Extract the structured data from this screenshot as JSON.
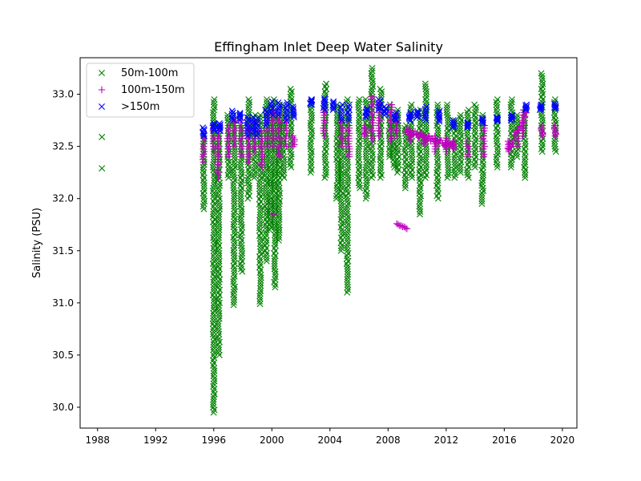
{
  "chart_data": {
    "type": "scatter",
    "title": "Effingham Inlet Deep Water Salinity",
    "xlabel": "",
    "ylabel": "Salinity (PSU)",
    "xlim": [
      1986.8,
      2021.0
    ],
    "ylim": [
      29.8,
      33.35
    ],
    "x_ticks": [
      1988,
      1992,
      1996,
      2000,
      2004,
      2008,
      2012,
      2016,
      2020
    ],
    "x_tick_labels": [
      "1988",
      "1992",
      "1996",
      "2000",
      "2004",
      "2008",
      "2012",
      "2016",
      "2020"
    ],
    "y_ticks": [
      30.0,
      30.5,
      31.0,
      31.5,
      32.0,
      32.5,
      33.0
    ],
    "y_tick_labels": [
      "30.0",
      "30.5",
      "31.0",
      "31.5",
      "32.0",
      "32.5",
      "33.0"
    ],
    "grid": false,
    "legend_position": "upper-left",
    "series": [
      {
        "name": "50m-100m",
        "color": "#008000",
        "marker": "x",
        "points": [
          [
            1988.3,
            32.59
          ],
          [
            1988.3,
            32.29
          ]
        ],
        "columns": [
          [
            1995.3,
            31.9,
            32.6
          ],
          [
            1996.0,
            29.95,
            32.95
          ],
          [
            1996.35,
            30.5,
            32.7
          ],
          [
            1997.0,
            32.2,
            32.8
          ],
          [
            1997.4,
            30.98,
            32.8
          ],
          [
            1997.9,
            31.3,
            32.7
          ],
          [
            1998.4,
            32.0,
            32.95
          ],
          [
            1998.8,
            32.2,
            32.8
          ],
          [
            1999.2,
            30.99,
            32.8
          ],
          [
            1999.6,
            31.4,
            32.95
          ],
          [
            1999.9,
            31.7,
            32.9
          ],
          [
            2000.2,
            31.15,
            32.95
          ],
          [
            2000.5,
            31.6,
            32.8
          ],
          [
            2000.8,
            32.2,
            32.9
          ],
          [
            2001.3,
            32.3,
            33.05
          ],
          [
            2002.7,
            32.25,
            32.95
          ],
          [
            2003.7,
            32.2,
            33.1
          ],
          [
            2004.5,
            32.0,
            32.9
          ],
          [
            2004.8,
            31.5,
            32.8
          ],
          [
            2005.2,
            31.1,
            32.95
          ],
          [
            2006.0,
            32.1,
            32.95
          ],
          [
            2006.5,
            32.0,
            32.95
          ],
          [
            2006.9,
            32.2,
            33.25
          ],
          [
            2007.5,
            32.2,
            33.05
          ],
          [
            2008.1,
            32.4,
            32.9
          ],
          [
            2008.4,
            32.3,
            32.8
          ],
          [
            2008.7,
            32.25,
            32.85
          ],
          [
            2009.2,
            32.1,
            32.7
          ],
          [
            2009.6,
            32.2,
            32.9
          ],
          [
            2010.2,
            31.85,
            32.85
          ],
          [
            2010.6,
            32.2,
            33.1
          ],
          [
            2011.4,
            32.0,
            32.9
          ],
          [
            2012.1,
            32.2,
            32.9
          ],
          [
            2012.6,
            32.2,
            32.75
          ],
          [
            2013.0,
            32.25,
            32.8
          ],
          [
            2013.5,
            32.2,
            32.85
          ],
          [
            2014.0,
            32.3,
            32.9
          ],
          [
            2014.5,
            31.95,
            32.8
          ],
          [
            2015.5,
            32.3,
            32.95
          ],
          [
            2016.5,
            32.3,
            32.95
          ],
          [
            2016.9,
            32.4,
            32.8
          ],
          [
            2017.4,
            32.2,
            32.85
          ],
          [
            2018.6,
            32.45,
            33.2
          ],
          [
            2019.5,
            32.45,
            32.95
          ]
        ]
      },
      {
        "name": "100m-150m",
        "color": "#bf00bf",
        "marker": "+",
        "points": [
          [
            2008.6,
            31.76
          ],
          [
            2008.7,
            31.75
          ],
          [
            2008.8,
            31.74
          ],
          [
            2008.9,
            31.74
          ],
          [
            2009.0,
            31.73
          ],
          [
            2009.1,
            31.73
          ],
          [
            2009.2,
            31.72
          ],
          [
            2009.3,
            31.71
          ],
          [
            2000.1,
            31.85
          ]
        ],
        "columns": [
          [
            1995.3,
            32.35,
            32.6
          ],
          [
            1996.0,
            32.45,
            32.7
          ],
          [
            1996.3,
            32.2,
            32.65
          ],
          [
            1997.0,
            32.4,
            32.7
          ],
          [
            1997.4,
            32.5,
            32.75
          ],
          [
            1997.9,
            32.4,
            32.75
          ],
          [
            1998.4,
            32.35,
            32.7
          ],
          [
            1998.8,
            32.45,
            32.75
          ],
          [
            1999.3,
            32.3,
            32.65
          ],
          [
            1999.7,
            32.5,
            32.8
          ],
          [
            2000.1,
            32.5,
            32.85
          ],
          [
            2000.5,
            32.4,
            32.8
          ],
          [
            2001.0,
            32.5,
            32.75
          ],
          [
            2001.5,
            32.5,
            32.6
          ],
          [
            2003.6,
            32.6,
            32.85
          ],
          [
            2004.8,
            32.5,
            32.75
          ],
          [
            2005.3,
            32.4,
            32.7
          ],
          [
            2006.4,
            32.6,
            32.7
          ],
          [
            2006.9,
            32.55,
            32.98
          ],
          [
            2007.4,
            32.6,
            32.92
          ],
          [
            2008.2,
            32.55,
            32.9
          ],
          [
            2008.6,
            32.6,
            32.8
          ],
          [
            2009.5,
            32.55,
            32.65
          ],
          [
            2010.5,
            32.52,
            32.6
          ],
          [
            2011.2,
            32.45,
            32.6
          ],
          [
            2012.0,
            32.45,
            32.58
          ],
          [
            2012.5,
            32.48,
            32.55
          ],
          [
            2013.5,
            32.4,
            32.55
          ],
          [
            2014.6,
            32.4,
            32.7
          ],
          [
            2016.3,
            32.45,
            32.55
          ],
          [
            2016.9,
            32.5,
            32.65
          ],
          [
            2017.3,
            32.6,
            32.85
          ],
          [
            2018.6,
            32.6,
            32.7
          ],
          [
            2019.5,
            32.6,
            32.7
          ]
        ],
        "ramps": [
          [
            2009.2,
            32.65,
            2012.5,
            32.5
          ],
          [
            2016.3,
            32.47,
            2017.5,
            32.8
          ]
        ]
      },
      {
        "name": ">150m",
        "color": "#0000ff",
        "marker": "x",
        "columns": [
          [
            1995.3,
            32.6,
            32.68
          ],
          [
            1996.0,
            32.65,
            32.72
          ],
          [
            1996.4,
            32.65,
            32.72
          ],
          [
            1997.3,
            32.75,
            32.84
          ],
          [
            1997.8,
            32.75,
            32.82
          ],
          [
            1998.3,
            32.6,
            32.78
          ],
          [
            1998.7,
            32.62,
            32.78
          ],
          [
            1999.0,
            32.6,
            32.77
          ],
          [
            1999.6,
            32.7,
            32.85
          ],
          [
            2000.0,
            32.8,
            32.93
          ],
          [
            2000.5,
            32.8,
            32.92
          ],
          [
            2001.0,
            32.75,
            32.92
          ],
          [
            2001.5,
            32.78,
            32.88
          ],
          [
            2002.7,
            32.9,
            32.95
          ],
          [
            2003.6,
            32.85,
            32.96
          ],
          [
            2004.2,
            32.85,
            32.93
          ],
          [
            2004.8,
            32.75,
            32.9
          ],
          [
            2005.3,
            32.75,
            32.9
          ],
          [
            2006.5,
            32.78,
            32.86
          ],
          [
            2007.4,
            32.85,
            32.95
          ],
          [
            2007.8,
            32.8,
            32.88
          ],
          [
            2008.5,
            32.75,
            32.82
          ],
          [
            2009.5,
            32.75,
            32.82
          ],
          [
            2010.0,
            32.78,
            32.84
          ],
          [
            2010.6,
            32.75,
            32.88
          ],
          [
            2011.5,
            32.74,
            32.84
          ],
          [
            2012.5,
            32.68,
            32.75
          ],
          [
            2013.5,
            32.68,
            32.73
          ],
          [
            2014.5,
            32.72,
            32.77
          ],
          [
            2015.5,
            32.74,
            32.78
          ],
          [
            2016.5,
            32.75,
            32.8
          ],
          [
            2017.5,
            32.85,
            32.9
          ],
          [
            2018.5,
            32.85,
            32.9
          ],
          [
            2019.5,
            32.86,
            32.91
          ]
        ]
      }
    ]
  }
}
